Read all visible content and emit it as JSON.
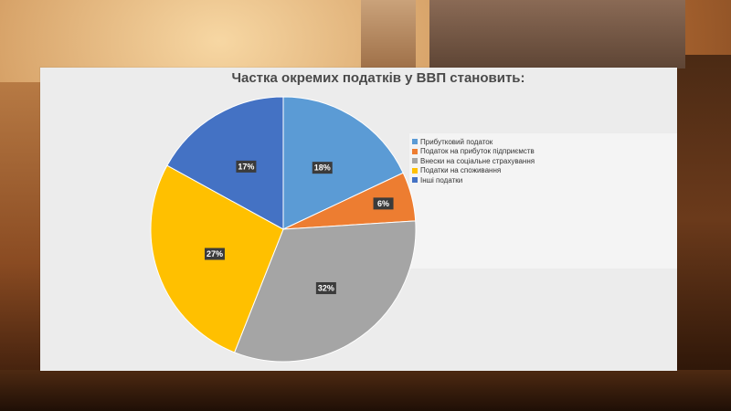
{
  "chart_data": {
    "type": "pie",
    "title": "Частка окремих податків у ВВП становить:",
    "categories": [
      "Прибутковий податок",
      "Податок на прибуток підприємств",
      "Внески на соціальне страхування",
      "Податки на споживання",
      "Інші податки"
    ],
    "values": [
      18,
      6,
      32,
      27,
      17
    ],
    "labels": [
      "18%",
      "6%",
      "32%",
      "27%",
      "17%"
    ],
    "colors": [
      "#5B9BD5",
      "#ED7D31",
      "#A5A5A5",
      "#FFC000",
      "#4472C4"
    ],
    "start_angle_deg": 0,
    "direction": "clockwise",
    "legend_position": "right"
  }
}
